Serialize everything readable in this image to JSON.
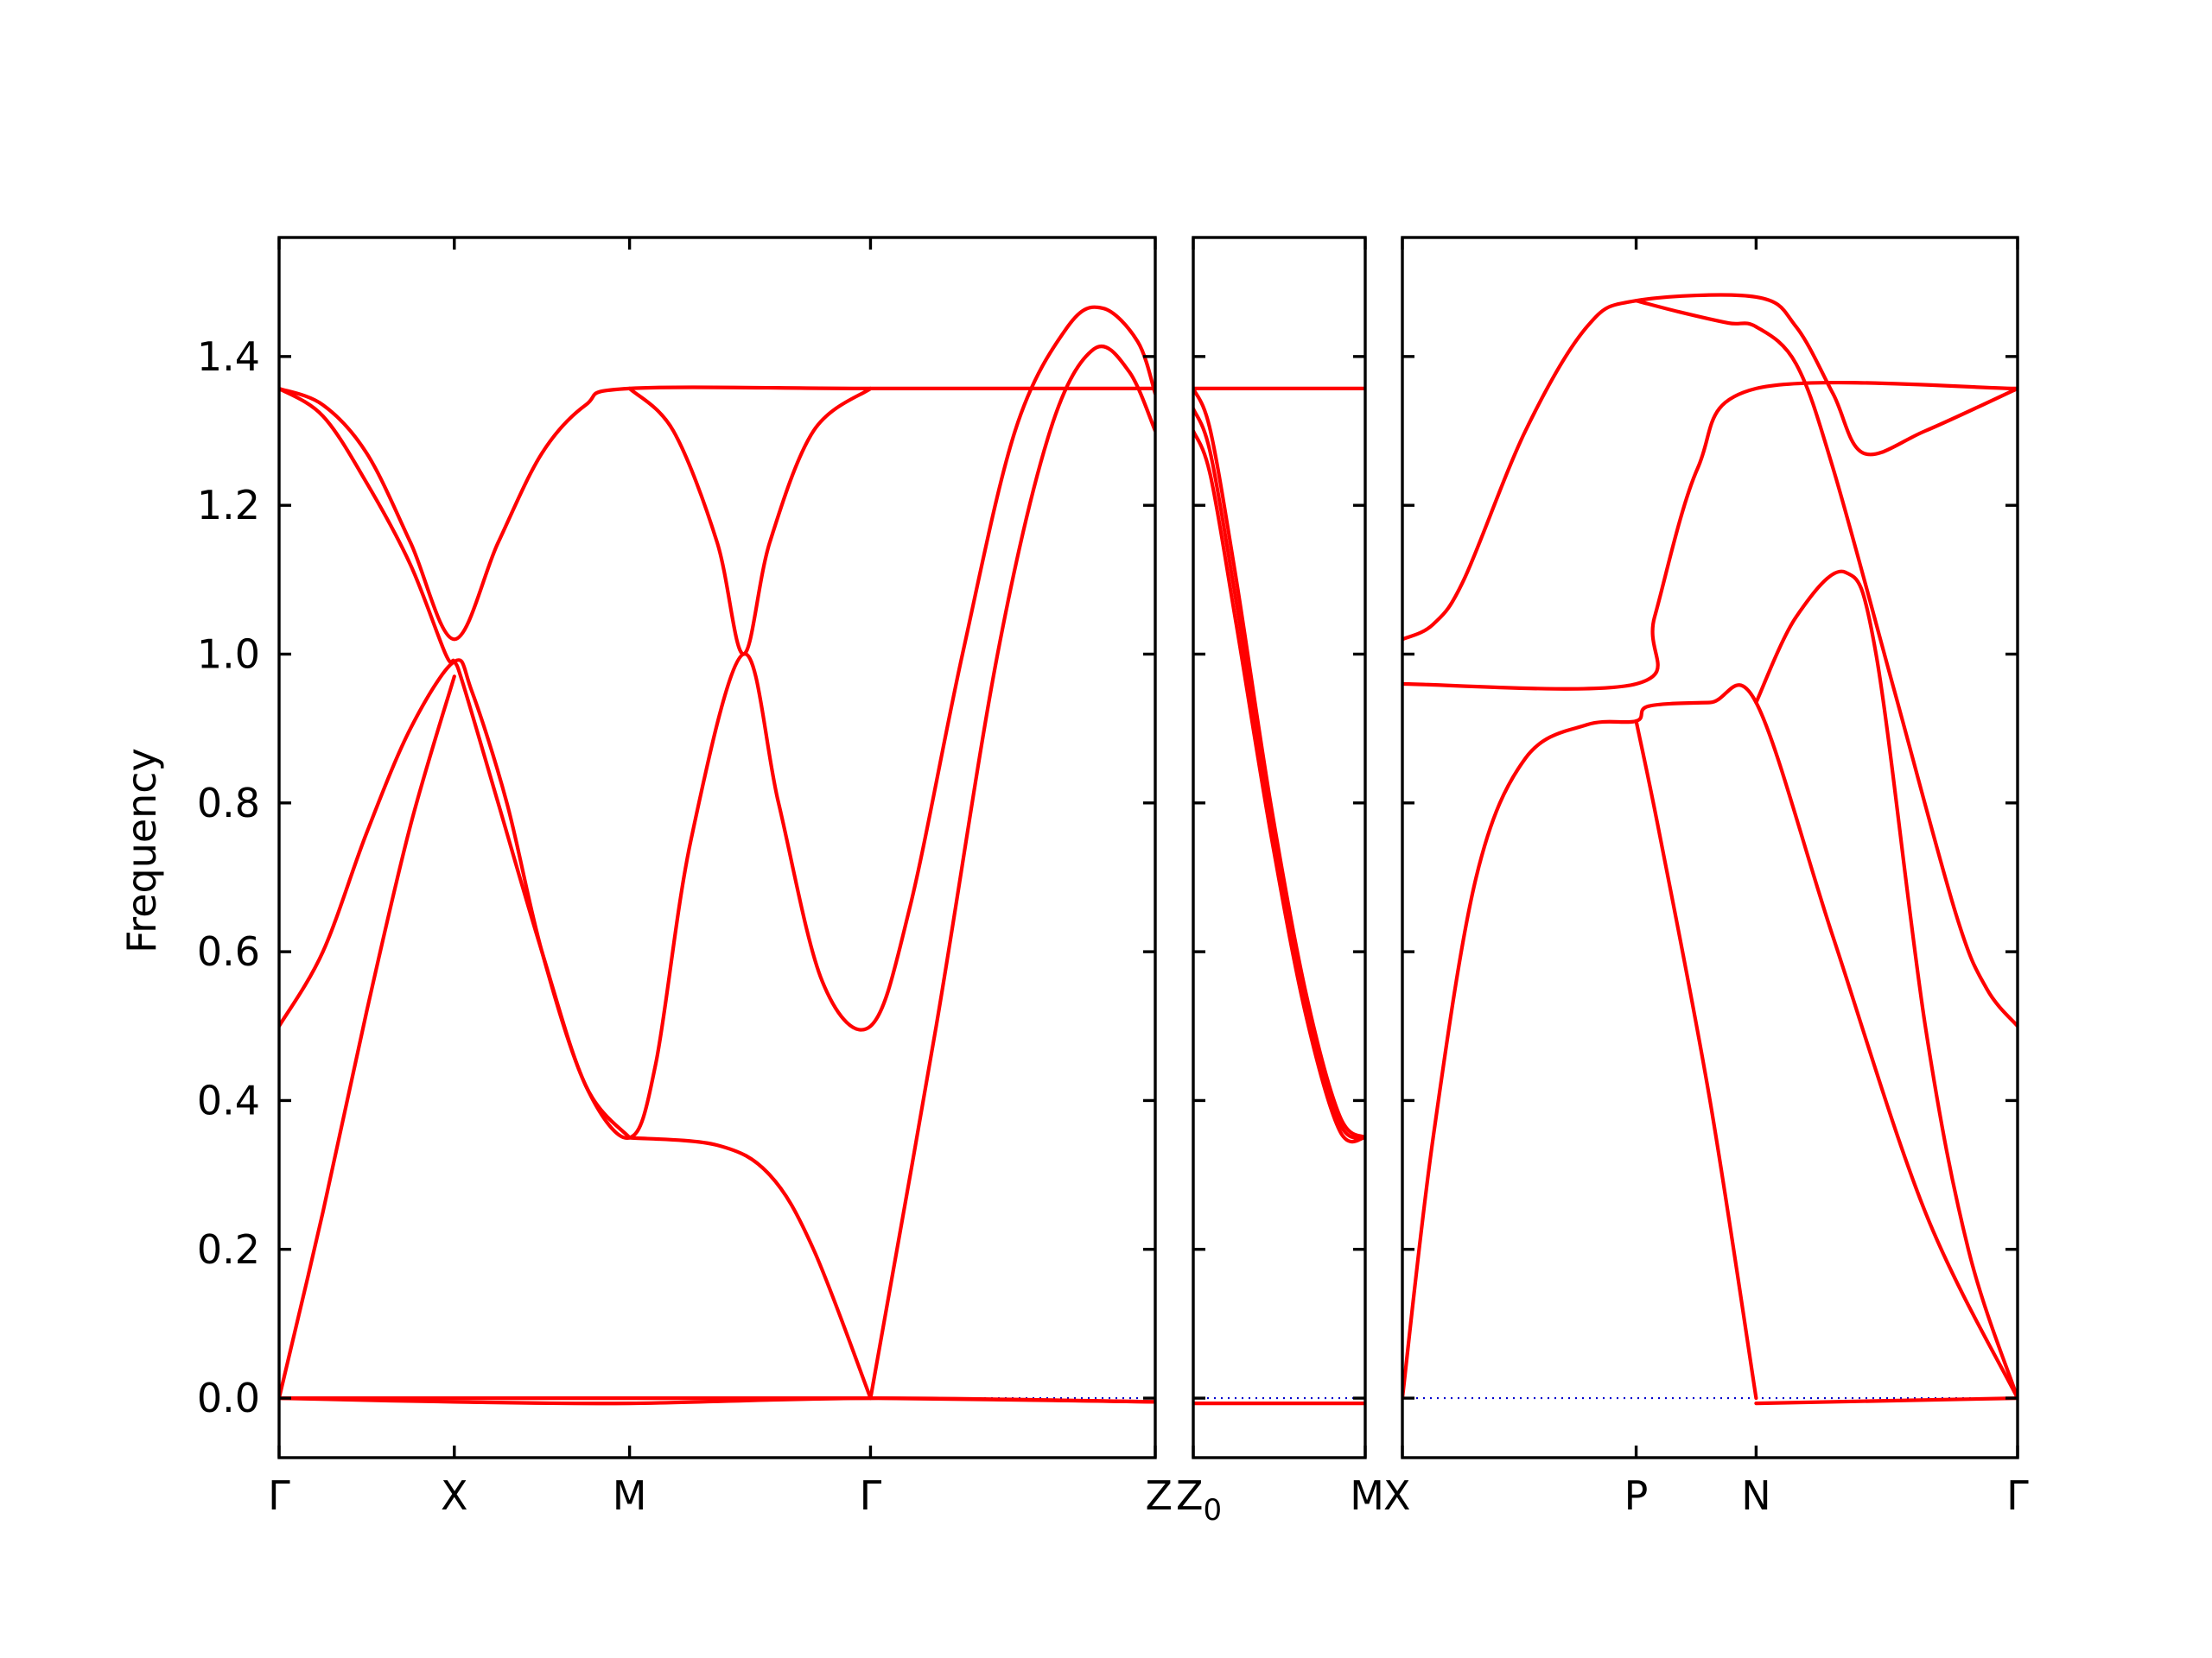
{
  "chart_data": {
    "type": "line",
    "ylabel": "Frequency",
    "ylim": [
      -0.08,
      1.56
    ],
    "yticks": [
      0.0,
      0.2,
      0.4,
      0.6,
      0.8,
      1.0,
      1.2,
      1.4
    ],
    "ytick_labels": [
      "0.0",
      "0.2",
      "0.4",
      "0.6",
      "0.8",
      "1.0",
      "1.2",
      "1.4"
    ],
    "band_color": "#ff0000",
    "zero_line_color": "#0000cc",
    "panels": [
      {
        "name": "Γ-X-M-Γ-Z",
        "ticks": [
          {
            "x": 0.0,
            "label": "Γ"
          },
          {
            "x": 0.2,
            "label": "X"
          },
          {
            "x": 0.4,
            "label": "M"
          },
          {
            "x": 0.675,
            "label": "Γ"
          },
          {
            "x": 1.0,
            "label": "Z"
          }
        ],
        "bands": [
          [
            [
              0,
              1.357
            ],
            [
              0.05,
              1.335
            ],
            [
              0.1,
              1.27
            ],
            [
              0.15,
              1.15
            ],
            [
              0.2,
              1.02
            ],
            [
              0.25,
              1.15
            ],
            [
              0.3,
              1.27
            ],
            [
              0.35,
              1.335
            ],
            [
              0.4,
              1.357
            ],
            [
              0.675,
              1.357
            ],
            [
              1.0,
              1.357
            ]
          ],
          [
            [
              0,
              1.357
            ],
            [
              0.05,
              1.32
            ],
            [
              0.1,
              1.23
            ],
            [
              0.15,
              1.12
            ],
            [
              0.19,
              1.0
            ],
            [
              0.2,
              0.99
            ],
            [
              0.21,
              0.96
            ],
            [
              0.25,
              0.8
            ],
            [
              0.3,
              0.6
            ],
            [
              0.35,
              0.42
            ],
            [
              0.4,
              0.35
            ],
            [
              0.43,
              0.45
            ],
            [
              0.47,
              0.75
            ],
            [
              0.53,
              1.0
            ],
            [
              0.57,
              0.8
            ],
            [
              0.62,
              0.56
            ],
            [
              0.675,
              0.5
            ],
            [
              0.72,
              0.66
            ],
            [
              0.78,
              1.0
            ],
            [
              0.84,
              1.3
            ],
            [
              0.9,
              1.44
            ],
            [
              0.94,
              1.465
            ],
            [
              0.98,
              1.42
            ],
            [
              1.0,
              1.35
            ]
          ],
          [
            [
              0,
              0.5
            ],
            [
              0.05,
              0.6
            ],
            [
              0.1,
              0.76
            ],
            [
              0.15,
              0.9
            ],
            [
              0.2,
              0.99
            ],
            [
              0.22,
              0.95
            ],
            [
              0.26,
              0.8
            ],
            [
              0.3,
              0.6
            ],
            [
              0.35,
              0.42
            ],
            [
              0.4,
              0.35
            ]
          ],
          [
            [
              0.4,
              1.357
            ],
            [
              0.45,
              1.3
            ],
            [
              0.5,
              1.15
            ],
            [
              0.53,
              1.0
            ],
            [
              0.56,
              1.15
            ],
            [
              0.61,
              1.3
            ],
            [
              0.675,
              1.357
            ]
          ],
          [
            [
              0,
              0
            ],
            [
              0.05,
              0.25
            ],
            [
              0.1,
              0.52
            ],
            [
              0.15,
              0.77
            ],
            [
              0.2,
              0.97
            ]
          ],
          [
            [
              0.4,
              0.35
            ],
            [
              0.5,
              0.34
            ],
            [
              0.56,
              0.3
            ],
            [
              0.61,
              0.2
            ],
            [
              0.675,
              0.0
            ]
          ],
          [
            [
              0.675,
              0.0
            ],
            [
              0.75,
              0.5
            ],
            [
              0.82,
              1.0
            ],
            [
              0.88,
              1.3
            ],
            [
              0.93,
              1.41
            ],
            [
              0.97,
              1.38
            ],
            [
              1.0,
              1.3
            ]
          ],
          [
            [
              0,
              0.0
            ],
            [
              0.2,
              -0.005
            ],
            [
              0.4,
              -0.007
            ],
            [
              0.675,
              0.0
            ],
            [
              1.0,
              -0.005
            ]
          ],
          [
            [
              0,
              0.0
            ],
            [
              0.2,
              0.0
            ],
            [
              0.4,
              0.0
            ],
            [
              0.675,
              0.0
            ],
            [
              1.0,
              -0.005
            ]
          ]
        ]
      },
      {
        "name": "Z0-M",
        "ticks": [
          {
            "x": 0.0,
            "label": "Z0"
          },
          {
            "x": 1.0,
            "label": "M"
          }
        ],
        "bands": [
          [
            [
              0,
              1.357
            ],
            [
              1.0,
              1.357
            ]
          ],
          [
            [
              0,
              1.357
            ],
            [
              0.1,
              1.3
            ],
            [
              0.25,
              1.1
            ],
            [
              0.45,
              0.8
            ],
            [
              0.65,
              0.55
            ],
            [
              0.85,
              0.38
            ],
            [
              1.0,
              0.35
            ]
          ],
          [
            [
              0,
              1.33
            ],
            [
              0.1,
              1.27
            ],
            [
              0.25,
              1.07
            ],
            [
              0.45,
              0.78
            ],
            [
              0.65,
              0.53
            ],
            [
              0.85,
              0.37
            ],
            [
              1.0,
              0.35
            ]
          ],
          [
            [
              0,
              1.3
            ],
            [
              0.1,
              1.24
            ],
            [
              0.25,
              1.04
            ],
            [
              0.45,
              0.76
            ],
            [
              0.65,
              0.52
            ],
            [
              0.85,
              0.36
            ],
            [
              1.0,
              0.35
            ]
          ],
          [
            [
              0,
              -0.007
            ],
            [
              1.0,
              -0.007
            ]
          ]
        ]
      },
      {
        "name": "X-P-N-Γ",
        "ticks": [
          {
            "x": 0.0,
            "label": "X"
          },
          {
            "x": 0.38,
            "label": "P"
          },
          {
            "x": 0.575,
            "label": "N"
          },
          {
            "x": 1.0,
            "label": "Γ"
          }
        ],
        "bands": [
          [
            [
              0,
              1.02
            ],
            [
              0.05,
              1.04
            ],
            [
              0.1,
              1.1
            ],
            [
              0.2,
              1.3
            ],
            [
              0.3,
              1.44
            ],
            [
              0.38,
              1.475
            ],
            [
              0.575,
              1.48
            ],
            [
              0.64,
              1.44
            ],
            [
              0.7,
              1.35
            ],
            [
              0.75,
              1.27
            ],
            [
              0.85,
              1.3
            ],
            [
              1.0,
              1.357
            ]
          ],
          [
            [
              0.38,
              1.475
            ],
            [
              0.45,
              1.46
            ],
            [
              0.53,
              1.445
            ],
            [
              0.575,
              1.44
            ],
            [
              0.64,
              1.39
            ],
            [
              0.7,
              1.25
            ],
            [
              0.8,
              0.95
            ],
            [
              0.9,
              0.65
            ],
            [
              0.95,
              0.55
            ],
            [
              1.0,
              0.5
            ]
          ],
          [
            [
              0,
              0.96
            ],
            [
              0.38,
              0.96
            ],
            [
              0.41,
              1.05
            ],
            [
              0.48,
              1.25
            ],
            [
              0.575,
              1.357
            ],
            [
              1.0,
              1.357
            ]
          ],
          [
            [
              0.575,
              0.935
            ],
            [
              0.64,
              1.05
            ],
            [
              0.72,
              1.11
            ],
            [
              0.77,
              1.0
            ],
            [
              0.85,
              0.5
            ],
            [
              0.92,
              0.2
            ],
            [
              1.0,
              0.0
            ]
          ],
          [
            [
              0,
              0
            ],
            [
              0.05,
              0.35
            ],
            [
              0.12,
              0.7
            ],
            [
              0.2,
              0.86
            ],
            [
              0.3,
              0.905
            ],
            [
              0.38,
              0.91
            ],
            [
              0.4,
              0.93
            ],
            [
              0.5,
              0.935
            ],
            [
              0.575,
              0.935
            ],
            [
              0.7,
              0.62
            ],
            [
              0.85,
              0.25
            ],
            [
              1.0,
              0.0
            ]
          ],
          [
            [
              0.38,
              0.91
            ],
            [
              0.42,
              0.75
            ],
            [
              0.5,
              0.4
            ],
            [
              0.575,
              0.0
            ]
          ],
          [
            [
              0.575,
              -0.007
            ],
            [
              1.0,
              0.0
            ]
          ]
        ]
      }
    ]
  }
}
